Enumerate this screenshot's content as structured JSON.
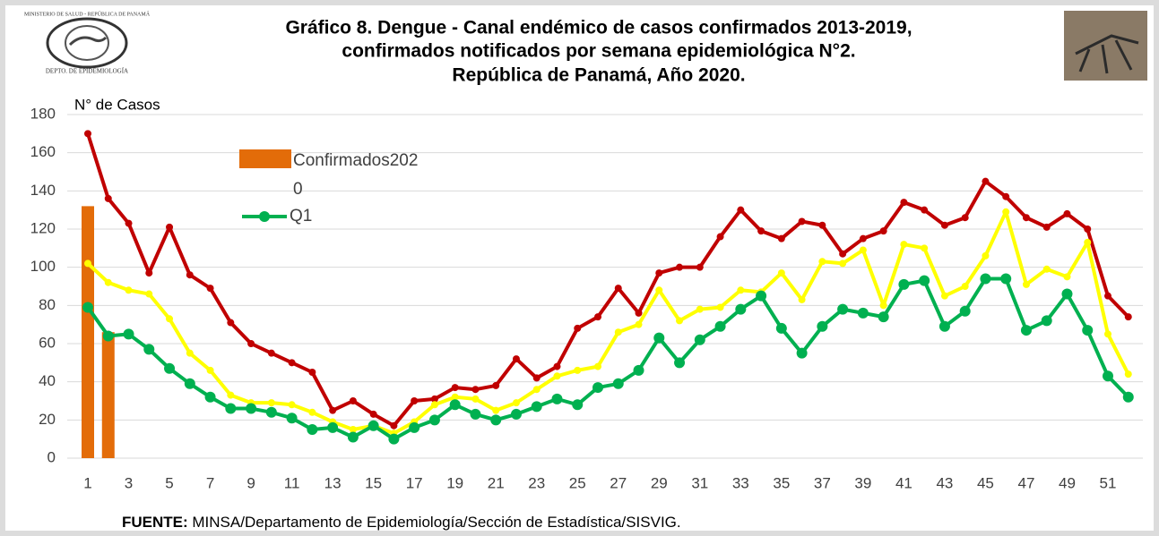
{
  "chart_data": {
    "type": "line",
    "title": [
      "Gráfico 8. Dengue - Canal endémico de casos confirmados 2013-2019,",
      "confirmados notificados por semana epidemiológica N°2.",
      "República de Panamá, Año 2020."
    ],
    "y_label": "N° de Casos",
    "footer": {
      "bold": "FUENTE:",
      "text": " MINSA/Departamento de Epidemiología/Sección de Estadística/SISVIG."
    },
    "logo": {
      "top": "MINISTERIO DE SALUD - REPÚBLICA DE PANAMÁ",
      "bottom": "DEPTO. DE EPIDEMIOLOGÍA"
    },
    "categories": [
      "1",
      null,
      "3",
      null,
      "5",
      null,
      "7",
      null,
      "9",
      null,
      "11",
      null,
      "13",
      null,
      "15",
      null,
      "17",
      null,
      "19",
      null,
      "21",
      null,
      "23",
      null,
      "25",
      null,
      "27",
      null,
      "29",
      null,
      "31",
      null,
      "33",
      null,
      "35",
      null,
      "37",
      null,
      "39",
      null,
      "41",
      null,
      "43",
      null,
      "45",
      null,
      "47",
      null,
      "49",
      null,
      "51",
      null
    ],
    "ylim": [
      0,
      180
    ],
    "yticks": [
      0,
      20,
      40,
      60,
      80,
      100,
      120,
      140,
      160,
      180
    ],
    "grid": true,
    "series": [
      {
        "name": "Confirmados2020",
        "type": "bar",
        "color": "#e36c09",
        "values": [
          132,
          66,
          null,
          null,
          null,
          null,
          null,
          null,
          null,
          null,
          null,
          null,
          null,
          null,
          null,
          null,
          null,
          null,
          null,
          null,
          null,
          null,
          null,
          null,
          null,
          null,
          null,
          null,
          null,
          null,
          null,
          null,
          null,
          null,
          null,
          null,
          null,
          null,
          null,
          null,
          null,
          null,
          null,
          null,
          null,
          null,
          null,
          null,
          null,
          null,
          null,
          null
        ]
      },
      {
        "type": "line",
        "color": "#c00000",
        "values": [
          170,
          136,
          123,
          97,
          121,
          96,
          89,
          71,
          60,
          55,
          50,
          45,
          25,
          30,
          23,
          17,
          30,
          31,
          37,
          36,
          38,
          52,
          42,
          48,
          68,
          74,
          89,
          76,
          97,
          100,
          100,
          116,
          130,
          119,
          115,
          124,
          122,
          107,
          115,
          119,
          134,
          130,
          122,
          126,
          145,
          137,
          126,
          121,
          128,
          120,
          85,
          74
        ]
      },
      {
        "type": "line",
        "color": "#ffff00",
        "values": [
          102,
          92,
          88,
          86,
          73,
          55,
          46,
          33,
          29,
          29,
          28,
          24,
          19,
          15,
          17,
          13,
          19,
          28,
          32,
          31,
          25,
          29,
          36,
          43,
          46,
          48,
          66,
          70,
          88,
          72,
          78,
          79,
          88,
          87,
          97,
          83,
          103,
          102,
          109,
          80,
          112,
          110,
          85,
          90,
          106,
          129,
          91,
          99,
          95,
          113,
          65,
          44
        ]
      },
      {
        "name": "Q1",
        "type": "line",
        "color": "#00b050",
        "values": [
          79,
          64,
          65,
          57,
          47,
          39,
          32,
          26,
          26,
          24,
          21,
          15,
          16,
          11,
          17,
          10,
          16,
          20,
          28,
          23,
          20,
          23,
          27,
          31,
          28,
          37,
          39,
          46,
          63,
          50,
          62,
          69,
          78,
          85,
          68,
          55,
          69,
          78,
          76,
          74,
          91,
          93,
          69,
          77,
          94,
          94,
          67,
          72,
          86,
          67,
          43,
          32
        ]
      }
    ]
  }
}
